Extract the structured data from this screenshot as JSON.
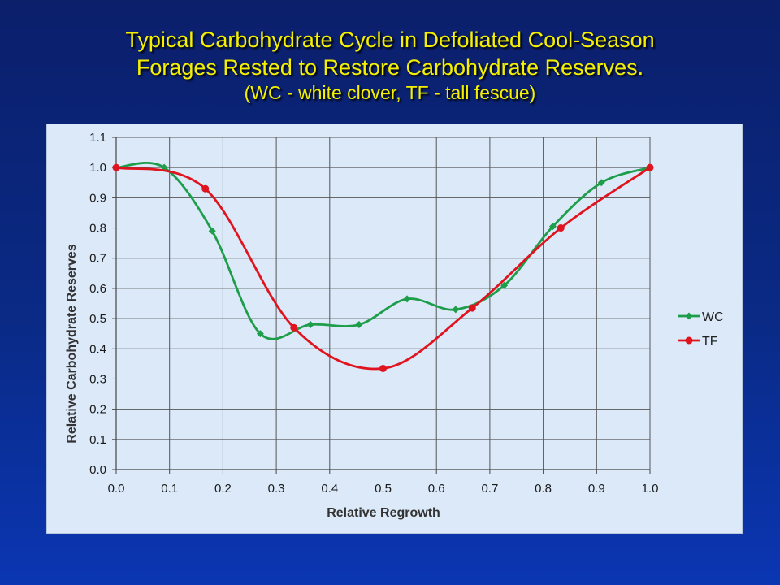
{
  "slide": {
    "title_line1": "Typical Carbohydrate Cycle in Defoliated Cool-Season",
    "title_line2": "Forages Rested to Restore Carbohydrate Reserves.",
    "subtitle": "(WC - white clover, TF - tall fescue)",
    "title_color": "#f4f000",
    "background_color": "#0a2a86"
  },
  "chart_data": {
    "type": "line",
    "xlabel": "Relative Regrowth",
    "ylabel": "Relative Carbohydrate Reserves",
    "xlim": [
      0.0,
      1.0
    ],
    "ylim": [
      0.0,
      1.1
    ],
    "x_ticks": [
      "0.0",
      "0.1",
      "0.2",
      "0.3",
      "0.4",
      "0.5",
      "0.6",
      "0.7",
      "0.8",
      "0.9",
      "1.0"
    ],
    "y_ticks": [
      "0.0",
      "0.1",
      "0.2",
      "0.3",
      "0.4",
      "0.5",
      "0.6",
      "0.7",
      "0.8",
      "0.9",
      "1.0",
      "1.1"
    ],
    "grid": true,
    "legend_position": "right",
    "series": [
      {
        "name": "WC",
        "color": "#1e9e4a",
        "marker": "diamond",
        "x": [
          0.0,
          0.09,
          0.18,
          0.27,
          0.364,
          0.455,
          0.545,
          0.636,
          0.727,
          0.818,
          0.909,
          1.0
        ],
        "y": [
          1.0,
          1.0,
          0.79,
          0.45,
          0.48,
          0.48,
          0.565,
          0.53,
          0.61,
          0.805,
          0.95,
          1.0
        ]
      },
      {
        "name": "TF",
        "color": "#e0141e",
        "marker": "circle",
        "x": [
          0.0,
          0.167,
          0.333,
          0.5,
          0.667,
          0.833,
          1.0
        ],
        "y": [
          1.0,
          0.93,
          0.47,
          0.335,
          0.535,
          0.8,
          1.0
        ]
      }
    ]
  }
}
